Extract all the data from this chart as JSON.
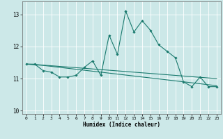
{
  "xlabel": "Humidex (Indice chaleur)",
  "ylabel": "",
  "xlim": [
    -0.5,
    23.5
  ],
  "ylim": [
    9.9,
    13.4
  ],
  "yticks": [
    10,
    11,
    12,
    13
  ],
  "xticks": [
    0,
    1,
    2,
    3,
    4,
    5,
    6,
    7,
    8,
    9,
    10,
    11,
    12,
    13,
    14,
    15,
    16,
    17,
    18,
    19,
    20,
    21,
    22,
    23
  ],
  "bg_color": "#cce8e8",
  "line_color": "#1a7a6e",
  "grid_color": "#ffffff",
  "series1_x": [
    0,
    1,
    2,
    3,
    4,
    5,
    6,
    7,
    8,
    9,
    10,
    11,
    12,
    13,
    14,
    15,
    16,
    17,
    18,
    19,
    20,
    21,
    22,
    23
  ],
  "series1_y": [
    11.45,
    11.45,
    11.25,
    11.2,
    11.05,
    11.05,
    11.1,
    11.35,
    11.55,
    11.1,
    12.35,
    11.75,
    13.1,
    12.45,
    12.8,
    12.5,
    12.05,
    11.85,
    11.65,
    10.9,
    10.75,
    11.05,
    10.75,
    10.75
  ],
  "series2_x": [
    0,
    1,
    2,
    3,
    4,
    5,
    6,
    7,
    8,
    9,
    10,
    11,
    12,
    13,
    14,
    15,
    16,
    17,
    18,
    19,
    20,
    21,
    22,
    23
  ],
  "series2_y": [
    11.45,
    11.43,
    11.41,
    11.38,
    11.35,
    11.32,
    11.29,
    11.26,
    11.23,
    11.2,
    11.17,
    11.14,
    11.11,
    11.08,
    11.05,
    11.02,
    10.99,
    10.96,
    10.93,
    10.9,
    10.87,
    10.84,
    10.81,
    10.78
  ],
  "series3_x": [
    0,
    1,
    2,
    3,
    4,
    5,
    6,
    7,
    8,
    9,
    10,
    11,
    12,
    13,
    14,
    15,
    16,
    17,
    18,
    19,
    20,
    21,
    22,
    23
  ],
  "series3_y": [
    11.45,
    11.44,
    11.42,
    11.4,
    11.38,
    11.36,
    11.34,
    11.32,
    11.3,
    11.28,
    11.26,
    11.24,
    11.22,
    11.2,
    11.18,
    11.16,
    11.14,
    11.12,
    11.1,
    11.08,
    11.06,
    11.04,
    11.02,
    11.0
  ]
}
